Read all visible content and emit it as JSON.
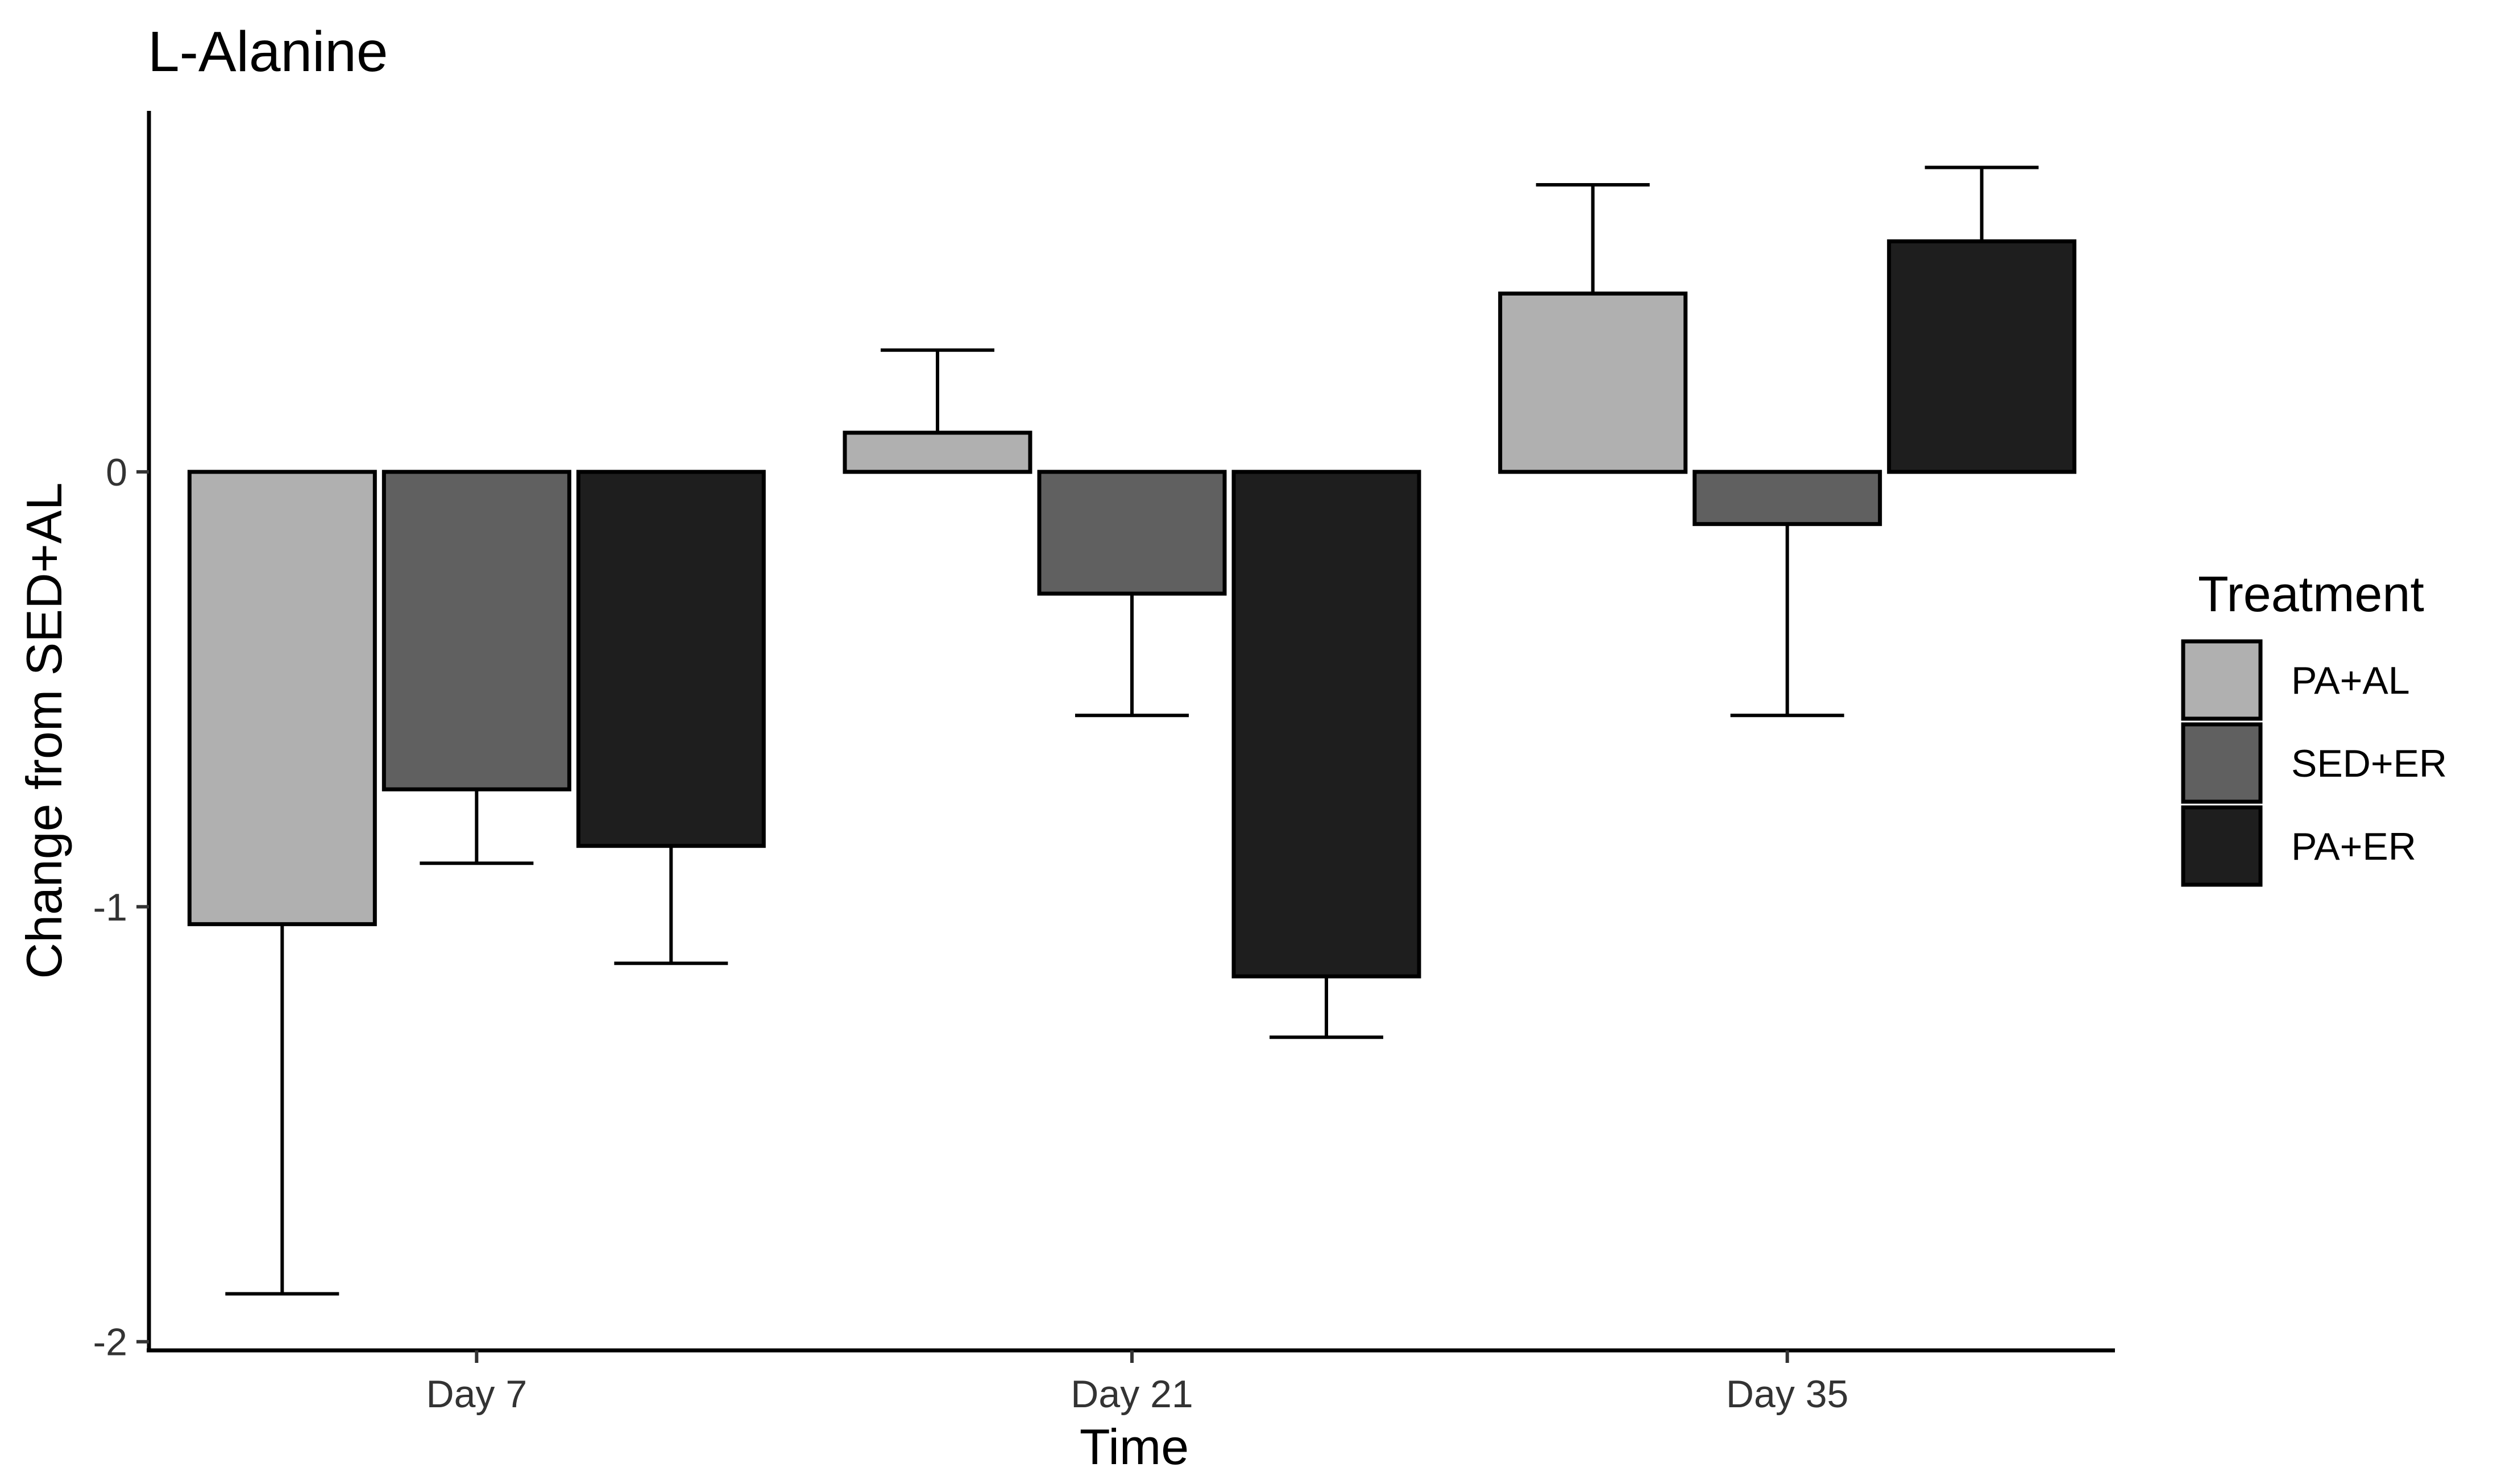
{
  "chart_data": {
    "type": "bar",
    "title": "L-Alanine",
    "xlabel": "Time",
    "ylabel": "Change from SED+AL",
    "categories": [
      "Day 7",
      "Day 21",
      "Day 35"
    ],
    "ylim": [
      -2.02,
      0.83
    ],
    "yticks": [
      -2,
      -1,
      0
    ],
    "ytick_labels": [
      "-2",
      "-1",
      "0"
    ],
    "error_bar_direction": "away-from-zero",
    "series": [
      {
        "name": "PA+AL",
        "color": "#b0b0b0",
        "values": [
          -1.04,
          0.09,
          0.41
        ],
        "error_bar_ends": [
          -1.89,
          0.28,
          0.66
        ]
      },
      {
        "name": "SED+ER",
        "color": "#606060",
        "values": [
          -0.73,
          -0.28,
          -0.12
        ],
        "error_bar_ends": [
          -0.9,
          -0.56,
          -0.56
        ]
      },
      {
        "name": "PA+ER",
        "color": "#1e1e1e",
        "values": [
          -0.86,
          -1.16,
          0.53
        ],
        "error_bar_ends": [
          -1.13,
          -1.3,
          0.7
        ]
      }
    ],
    "legend": {
      "title": "Treatment",
      "placement": "right"
    },
    "grid": false
  }
}
